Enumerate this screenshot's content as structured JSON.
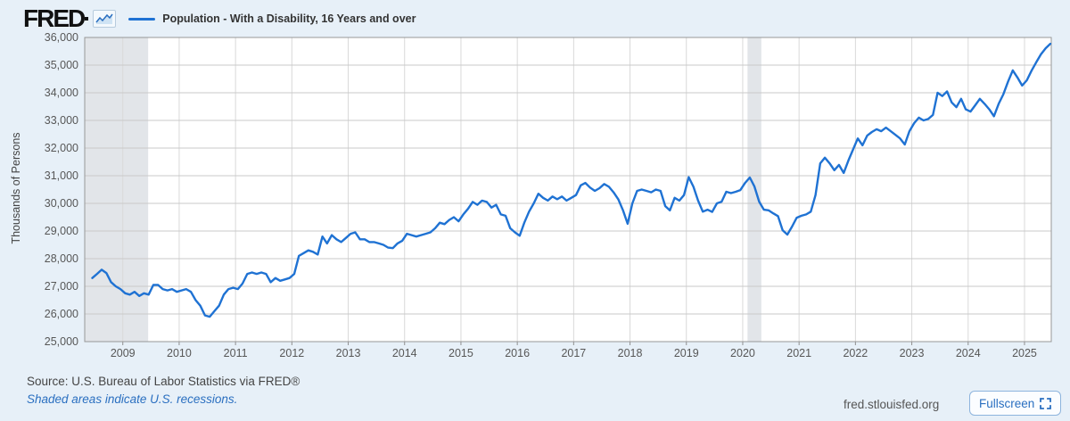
{
  "header": {
    "logo_text": "FRED",
    "legend_label": "Population - With a Disability, 16 Years and over"
  },
  "y_axis_title": "Thousands of Persons",
  "footer": {
    "source_text": "Source: U.S. Bureau of Labor Statistics via FRED®",
    "recession_note": "Shaded areas indicate U.S. recessions.",
    "watermark": "fred.stlouisfed.org",
    "fullscreen_label": "Fullscreen"
  },
  "colors": {
    "line": "#1f72d3",
    "page_bg": "#e7f0f8",
    "plot_bg": "#ffffff",
    "h_grid": "#c9c9c9",
    "v_grid": "#d9d9d9",
    "border": "#979797",
    "recession_band": "#e2e5e9",
    "tick_text": "#575757",
    "link_blue": "#2a6fc0"
  },
  "chart_data": {
    "type": "line",
    "title": "Population - With a Disability, 16 Years and over",
    "xlabel": "",
    "ylabel": "Thousands of Persons",
    "x_range": [
      2008.324,
      2025.475
    ],
    "ylim": [
      25000,
      36000
    ],
    "grid": true,
    "legend_position": "top-left",
    "x_start": 2008.4583,
    "x_step_months": 1,
    "x_ticks": [
      2009,
      2010,
      2011,
      2012,
      2013,
      2014,
      2015,
      2016,
      2017,
      2018,
      2019,
      2020,
      2021,
      2022,
      2023,
      2024,
      2025
    ],
    "y_ticks": [
      {
        "v": 25000,
        "label": "25,000"
      },
      {
        "v": 26000,
        "label": "26,000"
      },
      {
        "v": 27000,
        "label": "27,000"
      },
      {
        "v": 28000,
        "label": "28,000"
      },
      {
        "v": 29000,
        "label": "29,000"
      },
      {
        "v": 30000,
        "label": "30,000"
      },
      {
        "v": 31000,
        "label": "31,000"
      },
      {
        "v": 32000,
        "label": "32,000"
      },
      {
        "v": 33000,
        "label": "33,000"
      },
      {
        "v": 34000,
        "label": "34,000"
      },
      {
        "v": 35000,
        "label": "35,000"
      },
      {
        "v": 36000,
        "label": "36,000"
      }
    ],
    "recessions": [
      {
        "start": 2008.324,
        "end": 2009.45
      },
      {
        "start": 2020.085,
        "end": 2020.33
      }
    ],
    "series": [
      {
        "name": "Population - With a Disability, 16 Years and over",
        "start_month": "2008-06",
        "end_month": "2025-06",
        "values": [
          27300,
          27450,
          27600,
          27480,
          27150,
          27000,
          26900,
          26750,
          26700,
          26800,
          26650,
          26750,
          26700,
          27050,
          27050,
          26900,
          26850,
          26900,
          26800,
          26850,
          26900,
          26800,
          26500,
          26300,
          25950,
          25900,
          26100,
          26300,
          26700,
          26900,
          26950,
          26900,
          27100,
          27450,
          27500,
          27450,
          27500,
          27450,
          27150,
          27300,
          27200,
          27250,
          27300,
          27450,
          28100,
          28200,
          28300,
          28250,
          28150,
          28800,
          28550,
          28850,
          28700,
          28600,
          28750,
          28900,
          28950,
          28700,
          28700,
          28600,
          28600,
          28550,
          28500,
          28400,
          28380,
          28550,
          28650,
          28900,
          28850,
          28800,
          28850,
          28900,
          28950,
          29100,
          29300,
          29250,
          29400,
          29500,
          29350,
          29600,
          29800,
          30050,
          29950,
          30100,
          30050,
          29850,
          29950,
          29600,
          29550,
          29100,
          28950,
          28830,
          29300,
          29700,
          30000,
          30350,
          30200,
          30100,
          30250,
          30150,
          30250,
          30100,
          30200,
          30300,
          30650,
          30740,
          30570,
          30450,
          30550,
          30700,
          30600,
          30400,
          30150,
          29750,
          29260,
          30000,
          30450,
          30500,
          30450,
          30400,
          30500,
          30450,
          29900,
          29750,
          30200,
          30100,
          30300,
          30950,
          30600,
          30100,
          29700,
          29770,
          29690,
          30000,
          30060,
          30420,
          30370,
          30420,
          30480,
          30740,
          30935,
          30610,
          30060,
          29770,
          29750,
          29640,
          29540,
          29030,
          28870,
          29160,
          29480,
          29550,
          29600,
          29700,
          30300,
          31450,
          31650,
          31450,
          31200,
          31390,
          31100,
          31550,
          31950,
          32350,
          32100,
          32450,
          32580,
          32680,
          32610,
          32740,
          32610,
          32480,
          32350,
          32130,
          32610,
          32900,
          33100,
          33000,
          33050,
          33200,
          34000,
          33880,
          34050,
          33650,
          33480,
          33780,
          33400,
          33320,
          33550,
          33780,
          33600,
          33400,
          33150,
          33600,
          33950,
          34400,
          34810,
          34550,
          34260,
          34450,
          34800,
          35100,
          35390,
          35610,
          35770
        ]
      }
    ]
  }
}
